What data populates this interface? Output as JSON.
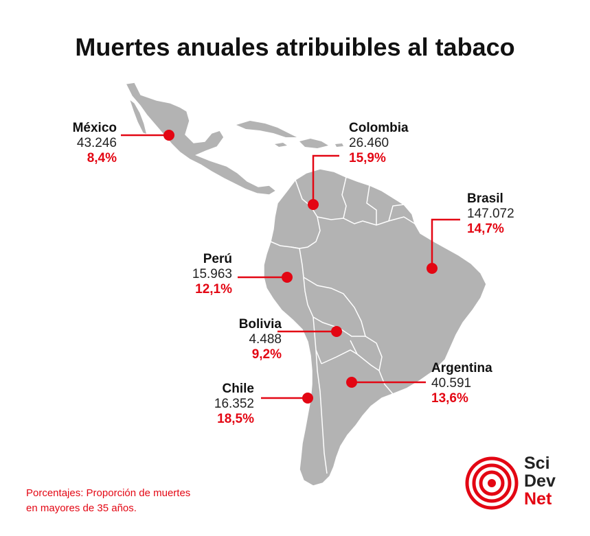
{
  "title": "Muertes anuales atribuibles al tabaco",
  "countries": [
    {
      "id": "mexico",
      "name": "México",
      "deaths": "43.246",
      "percent": "8,4%"
    },
    {
      "id": "colombia",
      "name": "Colombia",
      "deaths": "26.460",
      "percent": "15,9%"
    },
    {
      "id": "brasil",
      "name": "Brasil",
      "deaths": "147.072",
      "percent": "14,7%"
    },
    {
      "id": "peru",
      "name": "Perú",
      "deaths": "15.963",
      "percent": "12,1%"
    },
    {
      "id": "bolivia",
      "name": "Bolivia",
      "deaths": "4.488",
      "percent": "9,2%"
    },
    {
      "id": "argentina",
      "name": "Argentina",
      "deaths": "40.591",
      "percent": "13,6%"
    },
    {
      "id": "chile",
      "name": "Chile",
      "deaths": "16.352",
      "percent": "18,5%"
    }
  ],
  "footnote": {
    "line1": "Porcentajes: Proporción de muertes",
    "line2": "en mayores de 35 años."
  },
  "logo": {
    "line1": "Sci",
    "line2": "Dev",
    "line3": "Net"
  },
  "colors": {
    "land": "#b3b3b3",
    "border": "#ffffff",
    "accent": "#e30613"
  }
}
